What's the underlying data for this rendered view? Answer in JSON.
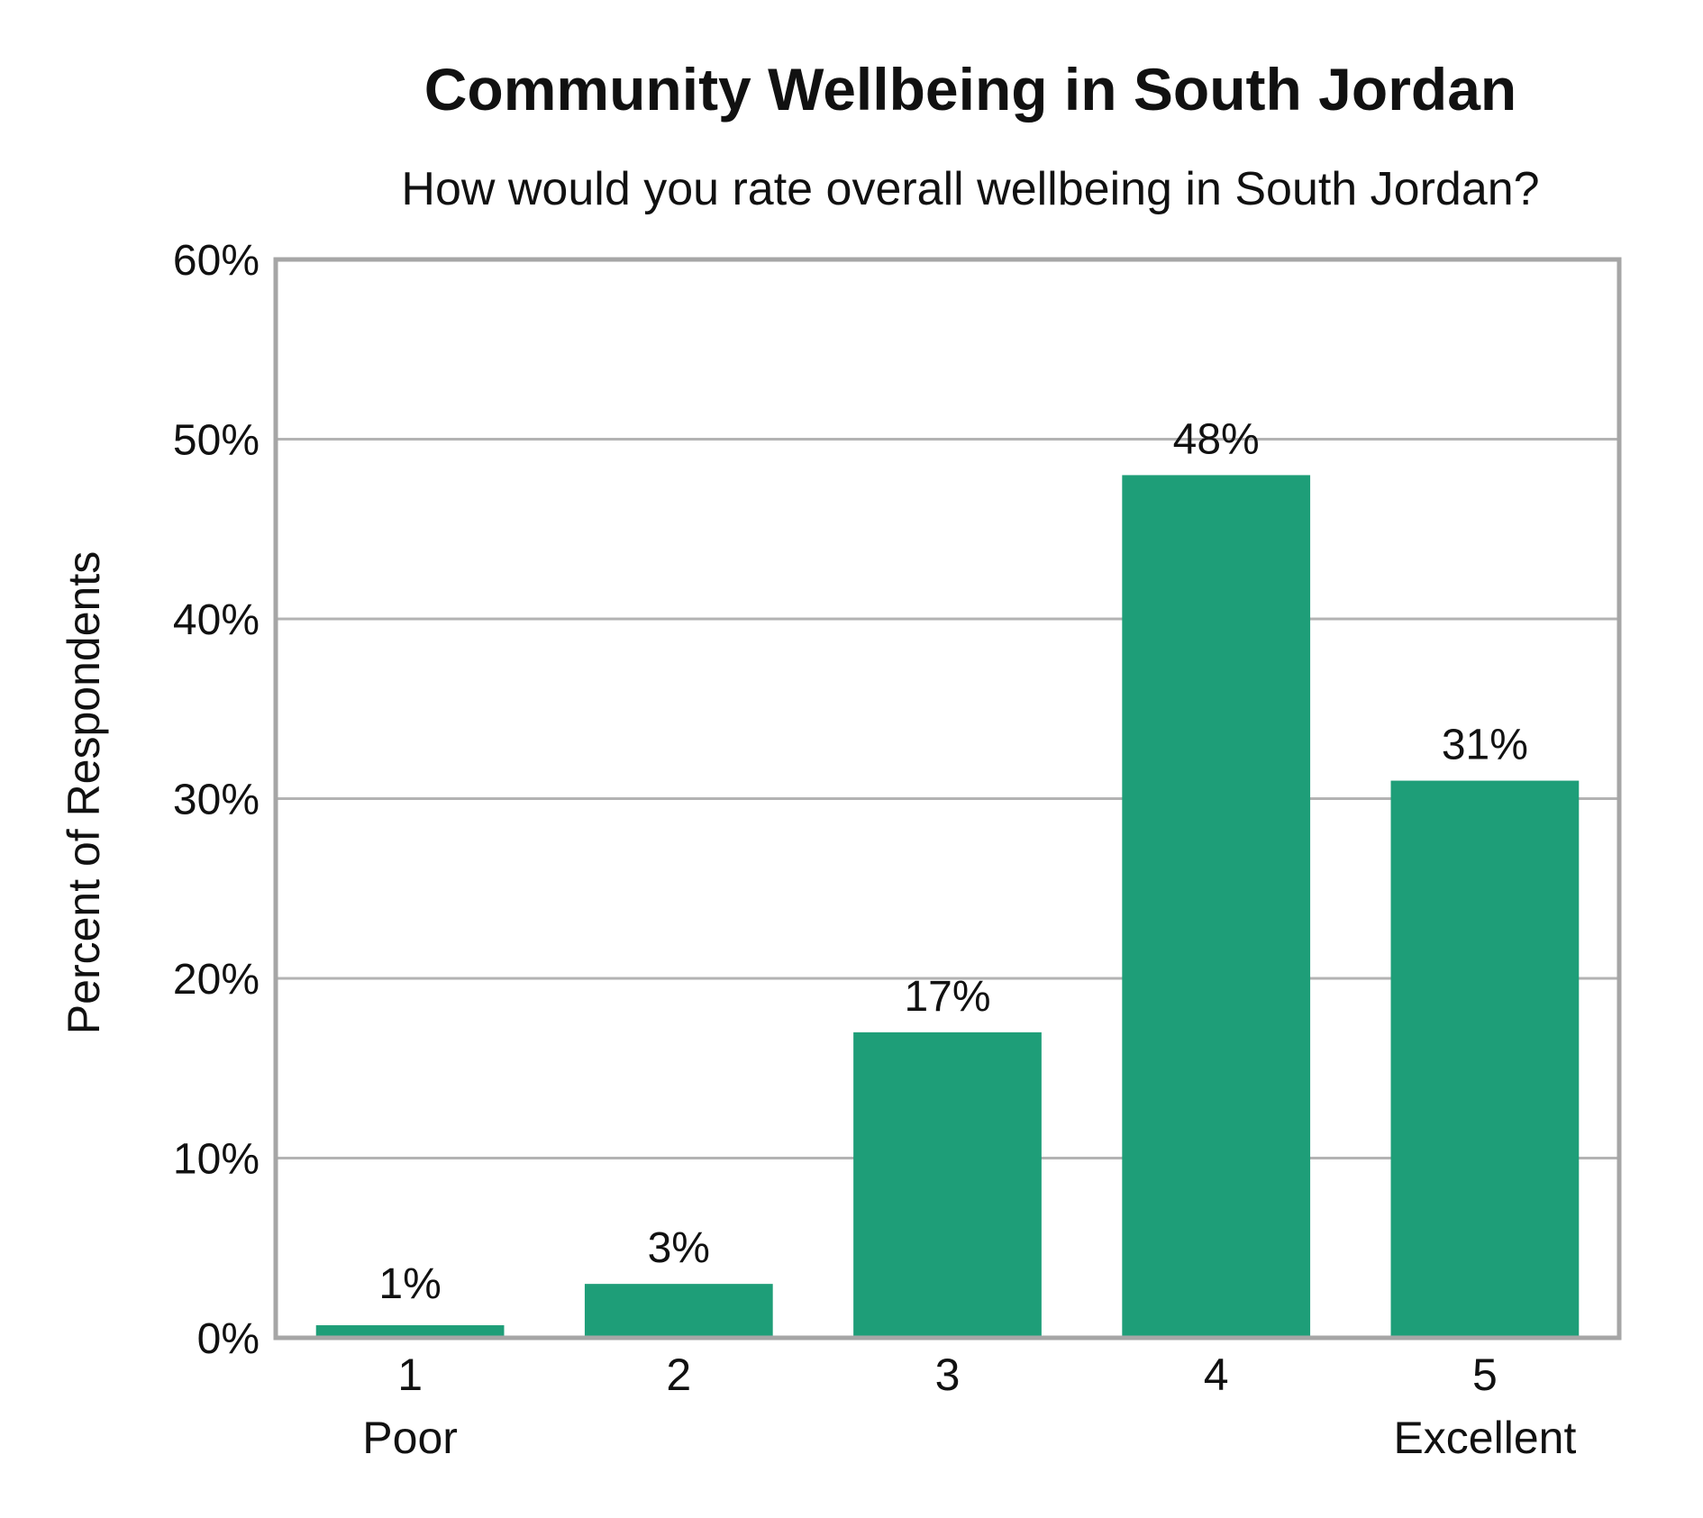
{
  "chart_data": {
    "type": "bar",
    "title": "Community Wellbeing in South Jordan",
    "subtitle": "How would you rate overall wellbeing in South Jordan?",
    "xlabel": "",
    "ylabel": "Percent of Respondents",
    "categories": [
      "1",
      "2",
      "3",
      "4",
      "5"
    ],
    "category_sublabels": [
      "Poor",
      "",
      "",
      "",
      "Excellent"
    ],
    "values": [
      1,
      3,
      17,
      48,
      31
    ],
    "data_labels": [
      "1%",
      "3%",
      "17%",
      "48%",
      "31%"
    ],
    "values_plotted": [
      0.7,
      3,
      17,
      48,
      31
    ],
    "ylim": [
      0,
      60
    ],
    "yticks": [
      0,
      10,
      20,
      30,
      40,
      50,
      60
    ],
    "ytick_labels": [
      "0%",
      "10%",
      "20%",
      "30%",
      "40%",
      "50%",
      "60%"
    ],
    "grid": true,
    "legend": "none",
    "colors": {
      "bar": "#1e9e78",
      "grid": "#b3b3b3",
      "frame": "#a6a6a6",
      "text": "#111111"
    }
  }
}
